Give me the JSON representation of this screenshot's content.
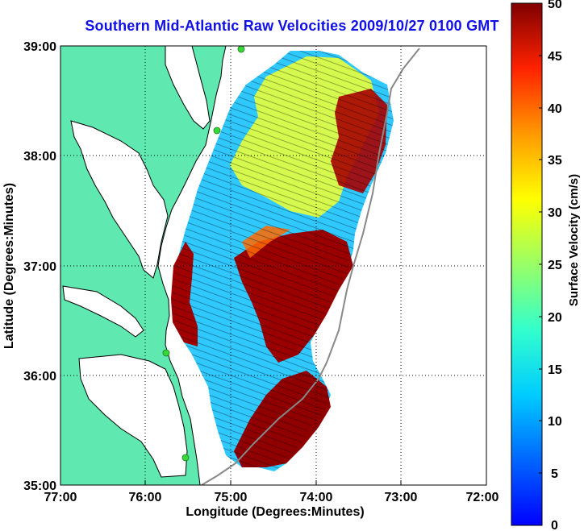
{
  "title": "Southern Mid-Atlantic Raw Velocities 2009/10/27 0100 GMT",
  "axes": {
    "xlabel": "Longitude (Degrees:Minutes)",
    "ylabel": "Latitude (Degrees:Minutes)",
    "x_ticks": [
      "77:00",
      "76:00",
      "75:00",
      "74:00",
      "73:00",
      "72:00"
    ],
    "y_ticks": [
      "39:00",
      "38:00",
      "37:00",
      "36:00",
      "35:00"
    ],
    "xlim_deg_west": [
      77,
      72
    ],
    "ylim_deg_north": [
      35,
      39
    ],
    "grid": "dotted"
  },
  "colorbar": {
    "label": "Surface Velocity (cm/s)",
    "ticks": [
      "50",
      "45",
      "40",
      "35",
      "30",
      "25",
      "20",
      "15",
      "10",
      "5",
      "0"
    ],
    "range": [
      0,
      50
    ],
    "colormap": "jet"
  },
  "colors": {
    "title": "#1010e6",
    "land": "#5fe8b0",
    "coastline": "#000000",
    "depth_contour": "#888888",
    "station_marker": "#38d838"
  },
  "stations_count_visible": 5
}
